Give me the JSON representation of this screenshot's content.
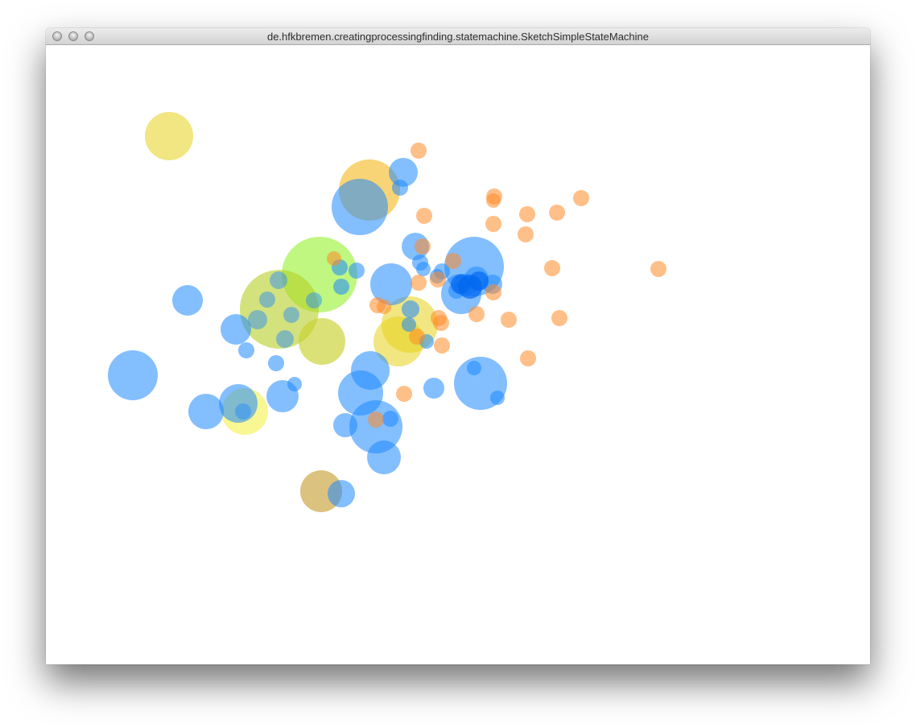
{
  "window": {
    "title": "de.hfkbremen.creatingprocessingfinding.statemachine.SketchSimpleStateMachine"
  },
  "titlebar": {
    "buttons": [
      "close-button",
      "minimize-button",
      "zoom-button"
    ]
  },
  "colors": {
    "blue": "#1e88ff",
    "orange": "#ff8a26",
    "yellow": "#e6d21a",
    "light_yellow": "#f5f04c",
    "lime": "#8af01a",
    "olive_green": "#b5cf25",
    "olive_yellow": "#c8d12e",
    "tan": "#c49a2a",
    "amber": "#f5b81a",
    "dark_blue_core": "#0066ee"
  }
}
